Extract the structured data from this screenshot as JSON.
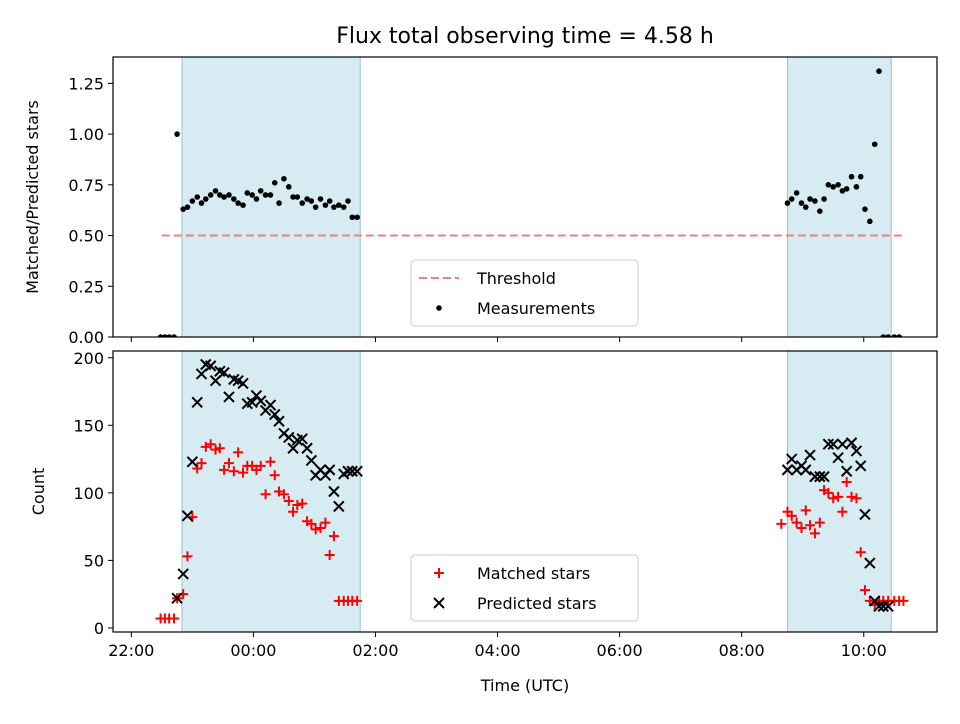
{
  "title": "Flux total observing time = 4.58 h",
  "chart_data": [
    {
      "type": "scatter",
      "ylabel": "Matched/Predicted stars",
      "xlim": [
        -0.3,
        13.2
      ],
      "ylim": [
        0,
        1.38
      ],
      "yticks": [
        "0.00",
        "0.25",
        "0.50",
        "0.75",
        "1.00",
        "1.25"
      ],
      "ytick_values": [
        0,
        0.25,
        0.5,
        0.75,
        1.0,
        1.25
      ],
      "legend": {
        "position": "bottom-center",
        "entries": [
          "Threshold",
          "Measurements"
        ]
      },
      "shaded_intervals": [
        [
          0.83,
          3.75
        ],
        [
          10.75,
          12.45
        ]
      ],
      "threshold": {
        "name": "Threshold",
        "value": 0.5,
        "x_range": [
          0.5,
          12.65
        ],
        "color": "#f08080"
      },
      "series": [
        {
          "name": "Measurements",
          "color": "#000000",
          "x": [
            0.48,
            0.55,
            0.62,
            0.7,
            0.75,
            0.85,
            0.92,
            1.0,
            1.08,
            1.15,
            1.22,
            1.3,
            1.38,
            1.45,
            1.52,
            1.6,
            1.68,
            1.75,
            1.83,
            1.9,
            1.98,
            2.05,
            2.12,
            2.2,
            2.28,
            2.35,
            2.42,
            2.5,
            2.58,
            2.65,
            2.72,
            2.8,
            2.88,
            2.95,
            3.02,
            3.1,
            3.18,
            3.25,
            3.32,
            3.4,
            3.48,
            3.55,
            3.62,
            3.7,
            10.75,
            10.82,
            10.9,
            10.98,
            11.05,
            11.12,
            11.2,
            11.28,
            11.35,
            11.42,
            11.5,
            11.58,
            11.65,
            11.72,
            11.8,
            11.88,
            11.95,
            12.02,
            12.1,
            12.18,
            12.25,
            12.32,
            12.4,
            12.5,
            12.58
          ],
          "y": [
            0.0,
            0.0,
            0.0,
            0.0,
            1.0,
            0.63,
            0.64,
            0.67,
            0.69,
            0.66,
            0.68,
            0.7,
            0.72,
            0.7,
            0.69,
            0.7,
            0.68,
            0.66,
            0.65,
            0.71,
            0.7,
            0.68,
            0.72,
            0.7,
            0.7,
            0.76,
            0.66,
            0.78,
            0.74,
            0.69,
            0.69,
            0.66,
            0.68,
            0.67,
            0.64,
            0.68,
            0.65,
            0.67,
            0.64,
            0.65,
            0.64,
            0.67,
            0.59,
            0.59,
            0.66,
            0.68,
            0.71,
            0.66,
            0.64,
            0.68,
            0.67,
            0.62,
            0.68,
            0.75,
            0.74,
            0.75,
            0.72,
            0.73,
            0.79,
            0.74,
            0.79,
            0.63,
            0.57,
            0.95,
            1.31,
            0.0,
            0.0,
            0.0,
            0.0
          ]
        }
      ]
    },
    {
      "type": "scatter",
      "xlabel": "Time (UTC)",
      "ylabel": "Count",
      "xlim": [
        -0.3,
        13.2
      ],
      "ylim": [
        -3,
        205
      ],
      "xticks": [
        "22:00",
        "00:00",
        "02:00",
        "04:00",
        "06:00",
        "08:00",
        "10:00"
      ],
      "xtick_values": [
        0,
        2,
        4,
        6,
        8,
        10,
        12
      ],
      "yticks": [
        "0",
        "50",
        "100",
        "150",
        "200"
      ],
      "ytick_values": [
        0,
        50,
        100,
        150,
        200
      ],
      "legend": {
        "position": "bottom-center",
        "entries": [
          "Matched stars",
          "Predicted stars"
        ]
      },
      "shaded_intervals": [
        [
          0.83,
          3.75
        ],
        [
          10.75,
          12.45
        ]
      ],
      "series": [
        {
          "name": "Matched stars",
          "color": "#ff0000",
          "marker": "+",
          "x": [
            0.48,
            0.55,
            0.62,
            0.7,
            0.75,
            0.85,
            0.92,
            1.0,
            1.08,
            1.15,
            1.22,
            1.3,
            1.38,
            1.45,
            1.52,
            1.6,
            1.68,
            1.75,
            1.83,
            1.9,
            1.98,
            2.05,
            2.12,
            2.2,
            2.28,
            2.35,
            2.42,
            2.5,
            2.58,
            2.65,
            2.72,
            2.8,
            2.88,
            2.95,
            3.02,
            3.1,
            3.18,
            3.25,
            3.32,
            3.4,
            3.48,
            3.55,
            3.62,
            3.7,
            10.65,
            10.75,
            10.82,
            10.9,
            10.98,
            11.05,
            11.12,
            11.2,
            11.28,
            11.35,
            11.42,
            11.5,
            11.58,
            11.65,
            11.72,
            11.8,
            11.88,
            11.95,
            12.02,
            12.1,
            12.18,
            12.25,
            12.32,
            12.4,
            12.5,
            12.58,
            12.65
          ],
          "y": [
            7,
            7,
            7,
            7,
            22,
            25,
            53,
            82,
            118,
            122,
            134,
            136,
            132,
            133,
            117,
            122,
            116,
            130,
            115,
            120,
            120,
            117,
            120,
            99,
            123,
            113,
            101,
            99,
            94,
            86,
            91,
            92,
            79,
            77,
            73,
            74,
            78,
            54,
            68,
            20,
            20,
            20,
            20,
            20,
            77,
            86,
            83,
            78,
            74,
            87,
            76,
            70,
            78,
            102,
            100,
            96,
            97,
            86,
            108,
            97,
            96,
            56,
            28,
            20,
            17,
            20,
            20,
            20,
            20,
            20,
            20
          ]
        },
        {
          "name": "Predicted stars",
          "color": "#000000",
          "marker": "x",
          "x": [
            0.75,
            0.85,
            0.92,
            1.0,
            1.08,
            1.15,
            1.22,
            1.3,
            1.38,
            1.45,
            1.52,
            1.6,
            1.68,
            1.75,
            1.83,
            1.9,
            1.98,
            2.05,
            2.12,
            2.2,
            2.28,
            2.35,
            2.42,
            2.5,
            2.58,
            2.65,
            2.72,
            2.8,
            2.88,
            2.95,
            3.02,
            3.1,
            3.18,
            3.25,
            3.32,
            3.4,
            3.48,
            3.55,
            3.62,
            3.7,
            10.75,
            10.82,
            10.9,
            10.98,
            11.05,
            11.12,
            11.2,
            11.28,
            11.35,
            11.42,
            11.5,
            11.58,
            11.65,
            11.72,
            11.8,
            11.88,
            11.95,
            12.02,
            12.1,
            12.18,
            12.25,
            12.32,
            12.4
          ],
          "y": [
            22,
            40,
            83,
            123,
            167,
            188,
            195,
            194,
            183,
            190,
            189,
            171,
            184,
            183,
            181,
            166,
            167,
            172,
            168,
            161,
            165,
            158,
            153,
            144,
            141,
            133,
            139,
            140,
            133,
            124,
            113,
            117,
            113,
            117,
            101,
            90,
            114,
            116,
            116,
            116,
            117,
            125,
            117,
            120,
            117,
            128,
            112,
            112,
            112,
            136,
            136,
            126,
            136,
            116,
            137,
            131,
            120,
            84,
            48,
            20,
            16,
            16,
            16
          ]
        }
      ]
    }
  ]
}
